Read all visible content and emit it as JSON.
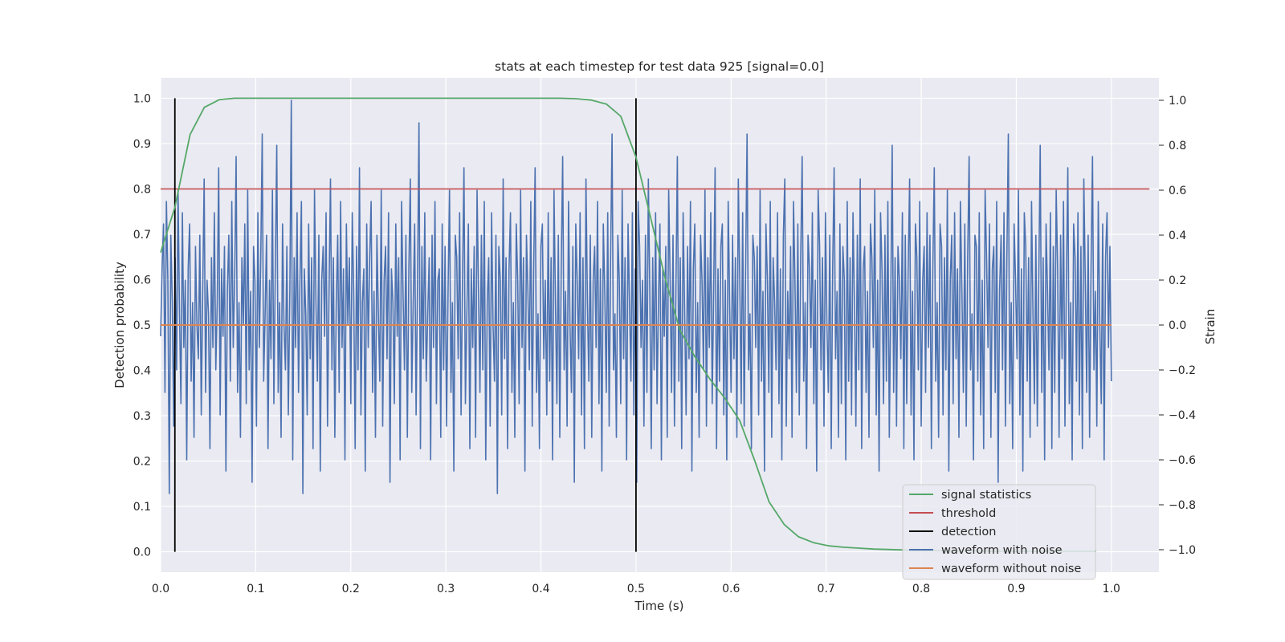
{
  "chart_data": {
    "type": "line",
    "title": "stats at each timestep for test data 925 [signal=0.0]",
    "xlabel": "Time (s)",
    "ylabel": "Detection probability",
    "y2label": "Strain",
    "xlim": [
      0.0,
      1.05
    ],
    "ylim": [
      -0.045,
      1.045
    ],
    "y2lim": [
      -1.1,
      1.1
    ],
    "xticks": [
      "0.0",
      "0.1",
      "0.2",
      "0.3",
      "0.4",
      "0.5",
      "0.6",
      "0.7",
      "0.8",
      "0.9",
      "1.0"
    ],
    "yticks": [
      "0.0",
      "0.1",
      "0.2",
      "0.3",
      "0.4",
      "0.5",
      "0.6",
      "0.7",
      "0.8",
      "0.9",
      "1.0"
    ],
    "y2ticks": [
      "−1.0",
      "−0.8",
      "−0.6",
      "−0.4",
      "−0.2",
      "0.0",
      "0.2",
      "0.4",
      "0.6",
      "0.8",
      "1.0"
    ],
    "grid": true,
    "legend_position": "lower-right",
    "series": [
      {
        "name": "signal statistics",
        "color": "#55a868",
        "axis": "left",
        "x": [
          0.0,
          0.015,
          0.031,
          0.046,
          0.062,
          0.078,
          0.093,
          0.109,
          0.125,
          0.14,
          0.156,
          0.2,
          0.25,
          0.3,
          0.35,
          0.4,
          0.42,
          0.437,
          0.453,
          0.469,
          0.484,
          0.5,
          0.515,
          0.531,
          0.546,
          0.562,
          0.578,
          0.593,
          0.609,
          0.625,
          0.64,
          0.656,
          0.671,
          0.687,
          0.703,
          0.718,
          0.734,
          0.75,
          0.765,
          0.781,
          0.796,
          0.812,
          0.828,
          0.843,
          0.859,
          0.875,
          0.89,
          0.906,
          0.921,
          0.937,
          0.953,
          0.968,
          0.984
        ],
        "values": [
          0.66,
          0.76,
          0.92,
          0.98,
          0.997,
          1.0,
          1.0,
          1.0,
          1.0,
          1.0,
          1.0,
          1.0,
          1.0,
          1.0,
          1.0,
          1.0,
          1.0,
          0.999,
          0.996,
          0.987,
          0.96,
          0.87,
          0.74,
          0.6,
          0.49,
          0.43,
          0.38,
          0.34,
          0.29,
          0.2,
          0.11,
          0.06,
          0.033,
          0.02,
          0.013,
          0.01,
          0.008,
          0.006,
          0.005,
          0.004,
          0.003,
          0.003,
          0.002,
          0.002,
          0.002,
          0.001,
          0.001,
          0.001,
          0.001,
          0.001,
          0.001,
          0.001,
          0.001
        ]
      },
      {
        "name": "threshold",
        "color": "#c44e52",
        "axis": "left",
        "x": [
          0.0,
          1.04
        ],
        "values": [
          0.8,
          0.8
        ]
      },
      {
        "name": "detection",
        "color": "#000000",
        "axis": "left",
        "segments": [
          {
            "x": 0.015,
            "y_from": 0.0,
            "y_to": 1.0
          },
          {
            "x": 0.5,
            "y_from": 0.0,
            "y_to": 1.0
          }
        ]
      },
      {
        "name": "waveform with noise",
        "color": "#4c72b0",
        "axis": "right",
        "x_start": 0.0,
        "x_end": 1.0,
        "values": [
          -0.05,
          0.25,
          0.45,
          -0.3,
          0.55,
          0.2,
          -0.75,
          0.4,
          0.1,
          -0.45,
          0.3,
          -0.2,
          0.6,
          0.05,
          -0.35,
          0.5,
          -0.1,
          0.2,
          -0.6,
          0.25,
          0.45,
          -0.25,
          0.1,
          -0.5,
          0.35,
          0.0,
          -0.15,
          0.4,
          -0.4,
          0.15,
          0.65,
          -0.3,
          0.2,
          0.05,
          -0.55,
          0.3,
          -0.1,
          0.5,
          -0.2,
          0.1,
          0.7,
          -0.4,
          0.25,
          -0.05,
          0.35,
          -0.65,
          0.15,
          0.4,
          -0.25,
          0.55,
          -0.1,
          0.2,
          0.75,
          -0.3,
          0.1,
          -0.5,
          0.3,
          0.0,
          0.45,
          -0.35,
          0.6,
          -0.2,
          0.15,
          -0.7,
          0.35,
          0.2,
          -0.45,
          0.5,
          -0.1,
          0.3,
          0.85,
          -0.25,
          0.05,
          0.4,
          -0.55,
          0.2,
          -0.15,
          0.6,
          -0.35,
          0.25,
          0.8,
          -0.3,
          0.1,
          -0.5,
          0.45,
          0.0,
          -0.2,
          0.35,
          -0.4,
          0.15,
          1.0,
          -0.6,
          0.3,
          -0.1,
          0.5,
          -0.3,
          0.2,
          0.55,
          -0.75,
          0.25,
          0.05,
          -0.4,
          0.45,
          -0.15,
          0.3,
          -0.55,
          0.6,
          0.1,
          -0.25,
          0.4,
          -0.65,
          0.2,
          0.35,
          -0.05,
          0.5,
          -0.45,
          0.15,
          0.65,
          -0.2,
          0.3,
          -0.5,
          0.1,
          0.4,
          -0.3,
          0.55,
          -0.1,
          0.25,
          -0.6,
          0.45,
          0.0,
          0.3,
          -0.35,
          0.5,
          0.15,
          -0.55,
          0.35,
          -0.2,
          0.7,
          -0.4,
          0.1,
          0.25,
          -0.65,
          0.45,
          -0.1,
          0.3,
          0.55,
          -0.3,
          0.15,
          -0.5,
          0.4,
          0.05,
          -0.25,
          0.6,
          -0.45,
          0.2,
          0.35,
          -0.15,
          0.5,
          -0.7,
          0.25,
          0.1,
          -0.35,
          0.45,
          -0.05,
          0.3,
          -0.6,
          0.55,
          0.15,
          -0.2,
          0.4,
          -0.5,
          0.25,
          0.65,
          -0.3,
          0.1,
          0.45,
          -0.4,
          0.2,
          0.9,
          -0.55,
          0.35,
          -0.15,
          0.5,
          -0.25,
          0.05,
          0.3,
          -0.6,
          0.4,
          -0.1,
          0.55,
          -0.35,
          0.2,
          0.25,
          -0.5,
          0.45,
          -0.2,
          0.35,
          -0.45,
          0.15,
          0.6,
          -0.3,
          0.1,
          -0.65,
          0.4,
          0.3,
          -0.15,
          0.5,
          -0.4,
          0.2,
          0.7,
          -0.35,
          0.05,
          0.45,
          -0.55,
          0.25,
          -0.1,
          0.35,
          -0.5,
          0.6,
          0.15,
          -0.3,
          0.4,
          -0.2,
          0.55,
          -0.6,
          0.1,
          0.3,
          -0.45,
          0.5,
          0.0,
          -0.25,
          0.4,
          -0.75,
          0.35,
          0.2,
          -0.4,
          0.65,
          -0.15,
          0.3,
          -0.55,
          0.25,
          0.5,
          -0.3,
          0.1,
          -0.5,
          0.45,
          0.2,
          -0.35,
          0.6,
          -0.1,
          0.3,
          -0.65,
          0.4,
          0.15,
          -0.2,
          0.55,
          -0.45,
          0.25,
          0.7,
          -0.3,
          0.05,
          -0.55,
          0.35,
          0.45,
          -0.15,
          0.2,
          -0.4,
          0.5,
          -0.25,
          0.3,
          -0.6,
          0.6,
          0.1,
          -0.35,
          0.4,
          -0.5,
          0.25,
          0.75,
          -0.2,
          0.15,
          -0.45,
          0.55,
          0.0,
          -0.3,
          0.35,
          -0.7,
          0.45,
          0.2,
          -0.15,
          0.5,
          -0.4,
          0.3,
          -0.55,
          0.65,
          0.1,
          -0.25,
          0.4,
          -0.5,
          0.2,
          0.35,
          -0.1,
          0.55,
          -0.35,
          0.25,
          -0.65,
          0.45,
          0.15,
          -0.3,
          0.5,
          -0.45,
          0.3,
          0.85,
          -0.2,
          0.05,
          -0.5,
          0.4,
          0.2,
          -0.35,
          0.6,
          -0.15,
          0.3,
          -0.6,
          0.45,
          0.1,
          -0.25,
          0.5,
          -0.4,
          0.25,
          -0.7,
          0.55,
          0.35,
          -0.1,
          0.2,
          -0.45,
          0.4,
          -0.3,
          0.65,
          0.15,
          -0.55,
          0.3,
          -0.2,
          0.5,
          -0.35,
          0.1,
          0.45,
          -0.6,
          0.25,
          -0.05,
          0.35,
          -0.5,
          0.6,
          0.2,
          -0.3,
          0.4,
          -0.45,
          0.15,
          0.75,
          -0.25,
          0.3,
          -0.55,
          0.5,
          0.05,
          -0.4,
          0.35,
          -0.15,
          0.55,
          -0.65,
          0.25,
          0.45,
          -0.3,
          0.1,
          -0.5,
          0.4,
          0.2,
          -0.2,
          0.6,
          -0.45,
          0.3,
          -0.1,
          0.5,
          -0.35,
          0.15,
          0.7,
          -0.55,
          0.25,
          -0.25,
          0.35,
          0.45,
          -0.4,
          0.2,
          -0.6,
          0.55,
          0.1,
          -0.3,
          0.4,
          -0.15,
          0.3,
          -0.5,
          0.65,
          0.2,
          -0.35,
          0.5,
          -0.45,
          0.25,
          0.85,
          -0.2,
          0.05,
          -0.55,
          0.4,
          0.3,
          -0.1,
          0.35,
          -0.4,
          0.6,
          -0.25,
          0.15,
          -0.65,
          0.45,
          0.2,
          -0.3,
          0.55,
          -0.5,
          0.3,
          0.1,
          -0.2,
          0.5,
          -0.35,
          0.25,
          -0.6,
          0.4,
          0.65,
          -0.45,
          0.15,
          -0.15,
          0.35,
          -0.5,
          0.55,
          0.2,
          -0.3,
          0.45,
          -0.4,
          0.3,
          0.75,
          -0.25,
          0.1,
          -0.55,
          0.4,
          0.25,
          -0.1,
          0.5,
          -0.35,
          0.2,
          -0.65,
          0.6,
          0.35,
          -0.2,
          0.3,
          -0.45,
          0.5,
          0.0,
          -0.3,
          0.4,
          -0.55,
          0.25,
          0.7,
          -0.15,
          0.15,
          -0.5,
          0.45,
          -0.35,
          0.35,
          0.2,
          -0.6,
          0.55,
          -0.25,
          0.3,
          -0.4,
          0.5,
          0.1,
          -0.45,
          0.4,
          -0.2,
          0.65,
          -0.55,
          0.25,
          0.35,
          -0.3,
          0.15,
          -0.5,
          0.45,
          0.3,
          -0.1,
          0.6,
          -0.4,
          0.2,
          -0.65,
          0.5,
          0.25,
          -0.35,
          0.4,
          -0.25,
          0.55,
          -0.5,
          0.1,
          0.8,
          -0.3,
          0.3,
          -0.45,
          0.35,
          0.2,
          -0.15,
          0.5,
          -0.55,
          0.4,
          -0.35,
          0.25,
          0.65,
          -0.4,
          0.15,
          -0.6,
          0.45,
          0.3,
          -0.2,
          0.55,
          -0.45,
          0.2,
          0.35,
          -0.3,
          0.5,
          -0.1,
          0.4,
          -0.55,
          0.25,
          0.7,
          -0.25,
          0.1,
          -0.5,
          0.45,
          0.35,
          -0.4,
          0.3,
          -0.2,
          0.6,
          -0.65,
          0.2,
          0.4,
          -0.35,
          0.5,
          -0.15,
          0.25,
          -0.5,
          0.55,
          0.15,
          -0.3,
          0.45,
          -0.45,
          0.3,
          0.75,
          -0.2,
          0.05,
          -0.6,
          0.4,
          0.35,
          -0.25,
          0.5,
          -0.4,
          0.2,
          -0.55,
          0.6,
          0.3,
          -0.1,
          0.45,
          -0.5,
          0.25,
          0.35,
          -0.3,
          0.55,
          -0.7,
          0.15,
          0.4,
          -0.2,
          0.5,
          -0.45,
          0.3,
          0.85,
          -0.35,
          0.1,
          -0.55,
          0.45,
          0.2,
          -0.15,
          0.6,
          -0.4,
          0.25,
          -0.65,
          0.5,
          0.35,
          -0.25,
          0.3,
          -0.5,
          0.55,
          0.05,
          -0.35,
          0.4,
          -0.45,
          0.2,
          0.8,
          -0.3,
          0.3,
          -0.6,
          0.45,
          0.15,
          -0.2,
          0.5,
          -0.55,
          0.35,
          -0.3,
          0.6,
          0.25,
          -0.5,
          0.4,
          -0.15,
          0.55,
          -0.45,
          0.2,
          0.7,
          -0.35,
          0.1,
          -0.6,
          0.45,
          0.3,
          -0.25,
          0.5,
          -0.4,
          0.35,
          -0.55,
          0.65,
          0.2,
          -0.3,
          0.4,
          -0.5,
          0.25,
          0.75,
          -0.2,
          0.15,
          -0.45,
          0.55,
          0.0,
          -0.35,
          0.45,
          -0.6,
          0.3,
          0.5,
          -0.1,
          0.35,
          -0.25
        ]
      },
      {
        "name": "waveform without noise",
        "color": "#dd8452",
        "axis": "right",
        "x": [
          0.0,
          1.0
        ],
        "values": [
          0.0,
          0.0
        ]
      }
    ]
  },
  "legend": {
    "items": [
      {
        "label": "signal statistics",
        "color": "#55a868"
      },
      {
        "label": "threshold",
        "color": "#c44e52"
      },
      {
        "label": "detection",
        "color": "#000000"
      },
      {
        "label": "waveform with noise",
        "color": "#4c72b0"
      },
      {
        "label": "waveform without noise",
        "color": "#dd8452"
      }
    ]
  },
  "colors": {
    "plot_background": "#eaeaf2",
    "grid": "#ffffff",
    "text": "#262626"
  }
}
